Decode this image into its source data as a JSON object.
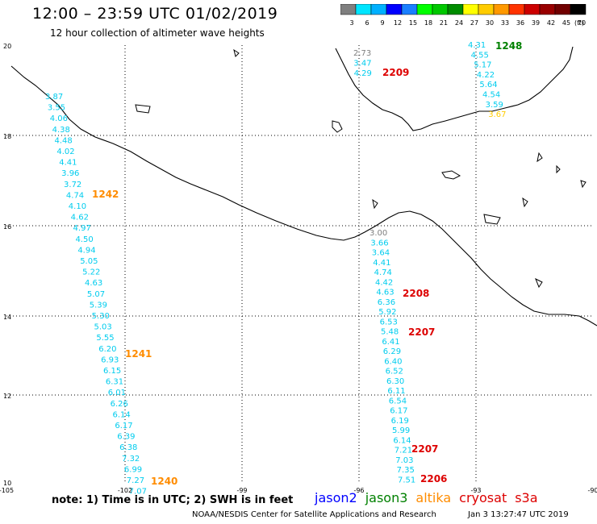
{
  "header": {
    "title": "12:00 – 23:59 UTC 01/02/2019",
    "subtitle": "12 hour collection of altimeter wave heights"
  },
  "colorbar": {
    "labels": [
      "3",
      "6",
      "9",
      "12",
      "15",
      "18",
      "21",
      "24",
      "27",
      "30",
      "33",
      "36",
      "39",
      "42",
      "45",
      "70"
    ],
    "unit": "(ft)",
    "colors": [
      "#7f7f7f",
      "#00e5ff",
      "#00b0ff",
      "#0000ff",
      "#1a7fff",
      "#00ff00",
      "#00c800",
      "#008c00",
      "#ffff00",
      "#ffcc00",
      "#ff9900",
      "#ff3300",
      "#cc0000",
      "#990000",
      "#700000",
      "#000000"
    ]
  },
  "axes": {
    "lat_labels": [
      "20",
      "18",
      "16",
      "14",
      "12",
      "10"
    ],
    "lon_labels": [
      "-105",
      "-102",
      "-99",
      "-96",
      "-93",
      "-90"
    ]
  },
  "tracks": [
    {
      "id": "west",
      "values": [
        "3.87",
        "3.55",
        "4.06",
        "4.38",
        "4.48",
        "4.02",
        "4.41",
        "3.96",
        "3.72",
        "4.74",
        "4.10",
        "4.62",
        "4.97",
        "4.50",
        "4.94",
        "5.05",
        "5.22",
        "4.63",
        "5.07",
        "5.39",
        "5.30",
        "5.03",
        "5.55",
        "6.20",
        "6.93",
        "6.15",
        "6.31",
        "6.01",
        "6.26",
        "6.14",
        "6.17",
        "6.39",
        "6.38",
        "7.32",
        "6.99",
        "7.27",
        "7.07"
      ]
    },
    {
      "id": "mid",
      "values": [
        "3.00",
        "3.66",
        "3.64",
        "4.41",
        "4.74",
        "4.42",
        "4.63",
        "6.36",
        "5.92",
        "6.53",
        "5.48",
        "6.41",
        "6.29",
        "6.40",
        "6.52",
        "6.30",
        "6.11",
        "6.54",
        "6.17",
        "6.19",
        "5.99",
        "6.14",
        "7.21",
        "7.03",
        "7.35",
        "7.51"
      ]
    },
    {
      "id": "gulf",
      "values": [
        "2.73",
        "3.47",
        "4.29"
      ]
    },
    {
      "id": "east",
      "values": [
        "4.31",
        "4.55",
        "5.17",
        "4.22",
        "5.64",
        "4.54",
        "3.59",
        "3.67"
      ]
    }
  ],
  "time_labels": [
    {
      "text": "1248",
      "color": "#008000"
    },
    {
      "text": "2209",
      "color": "#dd0000"
    },
    {
      "text": "1242",
      "color": "#ff8c00"
    },
    {
      "text": "2208",
      "color": "#dd0000"
    },
    {
      "text": "2207",
      "color": "#dd0000"
    },
    {
      "text": "1241",
      "color": "#ff8c00"
    },
    {
      "text": "2207",
      "color": "#dd0000"
    },
    {
      "text": "1240",
      "color": "#ff8c00"
    },
    {
      "text": "2206",
      "color": "#dd0000"
    }
  ],
  "note": "note: 1) Time is in UTC; 2) SWH is in feet",
  "legend": [
    {
      "text": "jason2",
      "color": "#0000ff"
    },
    {
      "text": "jason3",
      "color": "#008000"
    },
    {
      "text": "altika",
      "color": "#ff8c00"
    },
    {
      "text": "cryosat",
      "color": "#dd0000"
    },
    {
      "text": "s3a",
      "color": "#dd0000"
    }
  ],
  "footer": {
    "credit": "NOAA/NESDIS Center for Satellite Applications and Research",
    "timestamp": "Jan  3 13:27:47 UTC 2019"
  }
}
